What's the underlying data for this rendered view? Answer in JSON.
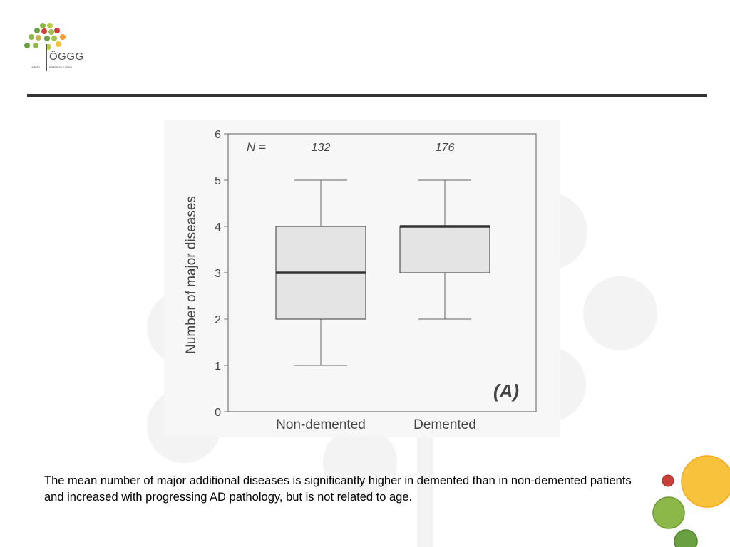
{
  "logo": {
    "wordmark": "ÖGGG",
    "tagline_left": "Altern",
    "tagline_right": "Mitten im Leben"
  },
  "caption": {
    "text": "The mean number of major additional diseases is significantly higher in demented than in non-demented patients and increased with progressing AD pathology, but is not related to age."
  },
  "chart_data": {
    "type": "box",
    "title": "",
    "xlabel": "",
    "ylabel": "Number of major diseases",
    "ylim": [
      0,
      6
    ],
    "yticks": [
      0,
      1,
      2,
      3,
      4,
      5,
      6
    ],
    "categories": [
      "Non-demented",
      "Demented"
    ],
    "n_label": "N =",
    "n_values": [
      "132",
      "176"
    ],
    "panel_label": "(A)",
    "boxes": [
      {
        "name": "Non-demented",
        "whisker_low": 1,
        "q1": 2,
        "median": 3,
        "q3": 4,
        "whisker_high": 5
      },
      {
        "name": "Demented",
        "whisker_low": 2,
        "q1": 3,
        "median": 4,
        "q3": 4,
        "whisker_high": 5
      }
    ],
    "grid": false
  },
  "colors": {
    "box_fill": "#e4e4e4",
    "ink": "#444444",
    "decor_gray": "#f2f2f2",
    "circle_yellow": "#f9c23c",
    "circle_green": "#8cb84a",
    "circle_red": "#c9403a"
  }
}
